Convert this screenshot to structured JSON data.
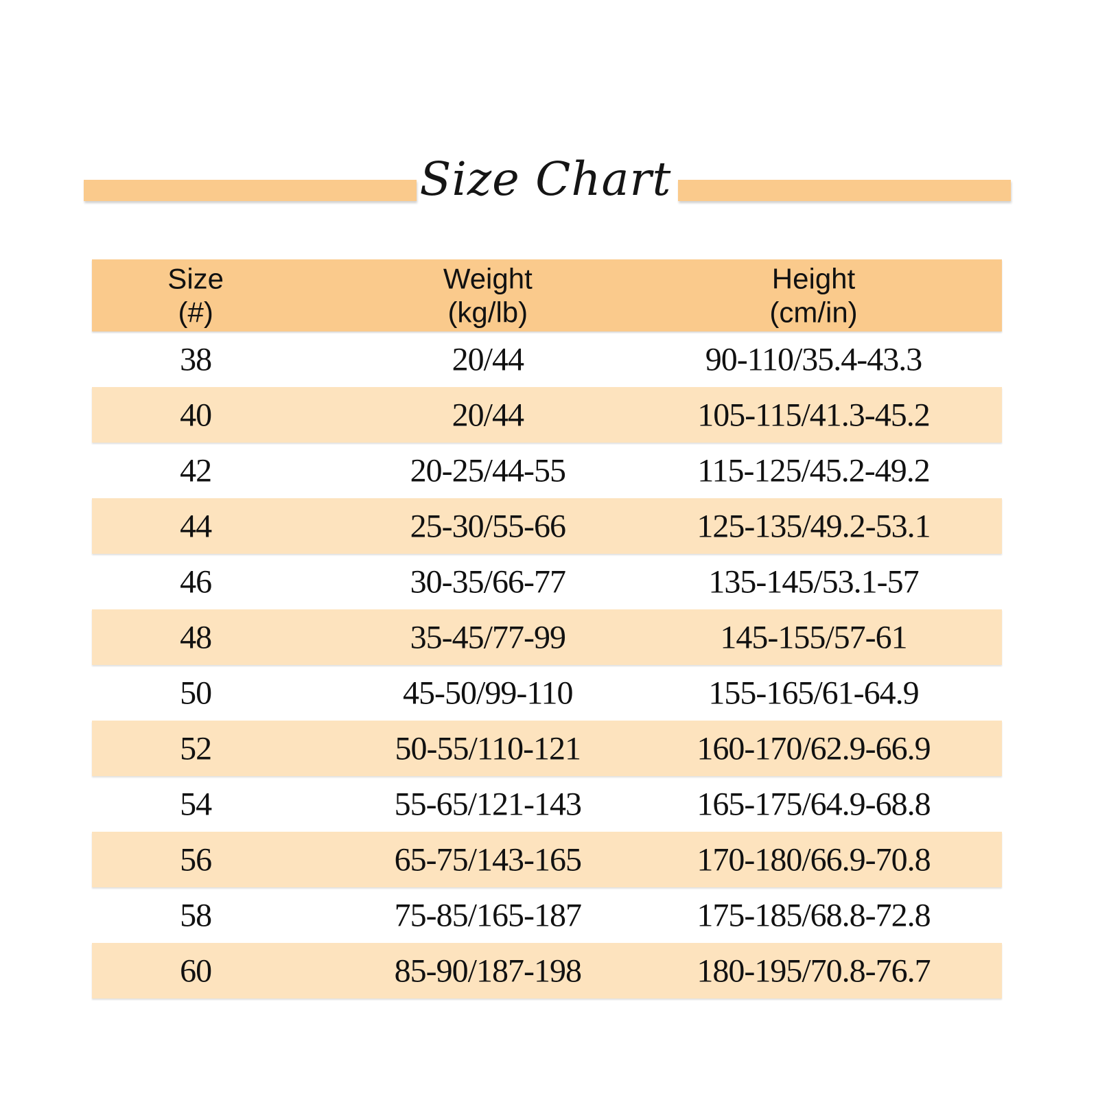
{
  "title": {
    "text": "Size Chart"
  },
  "colors": {
    "accent": "#FACA8C",
    "stripe": "#FDE3BE",
    "text_color": "#111111",
    "background": "#FFFFFF"
  },
  "header": {
    "columns": [
      {
        "line1": "Size",
        "line2": "(#)"
      },
      {
        "line1": "Weight",
        "line2": "(kg/lb)"
      },
      {
        "line1": "Height",
        "line2": "(cm/in)"
      }
    ]
  },
  "chart_data": {
    "type": "table",
    "title": "Size Chart",
    "columns": [
      "Size (#)",
      "Weight (kg/lb)",
      "Height (cm/in)"
    ],
    "rows": [
      [
        "38",
        "20/44",
        "90-110/35.4-43.3"
      ],
      [
        "40",
        "20/44",
        "105-115/41.3-45.2"
      ],
      [
        "42",
        "20-25/44-55",
        "115-125/45.2-49.2"
      ],
      [
        "44",
        "25-30/55-66",
        "125-135/49.2-53.1"
      ],
      [
        "46",
        "30-35/66-77",
        "135-145/53.1-57"
      ],
      [
        "48",
        "35-45/77-99",
        "145-155/57-61"
      ],
      [
        "50",
        "45-50/99-110",
        "155-165/61-64.9"
      ],
      [
        "52",
        "50-55/110-121",
        "160-170/62.9-66.9"
      ],
      [
        "54",
        "55-65/121-143",
        "165-175/64.9-68.8"
      ],
      [
        "56",
        "65-75/143-165",
        "170-180/66.9-70.8"
      ],
      [
        "58",
        "75-85/165-187",
        "175-185/68.8-72.8"
      ],
      [
        "60",
        "85-90/187-198",
        "180-195/70.8-76.7"
      ]
    ],
    "layout": {
      "striped": true,
      "stripe_pattern": "alternating rows shaded, starting with second data row",
      "header_background": "#FACA8C",
      "stripe_background": "#FDE3BE"
    }
  }
}
